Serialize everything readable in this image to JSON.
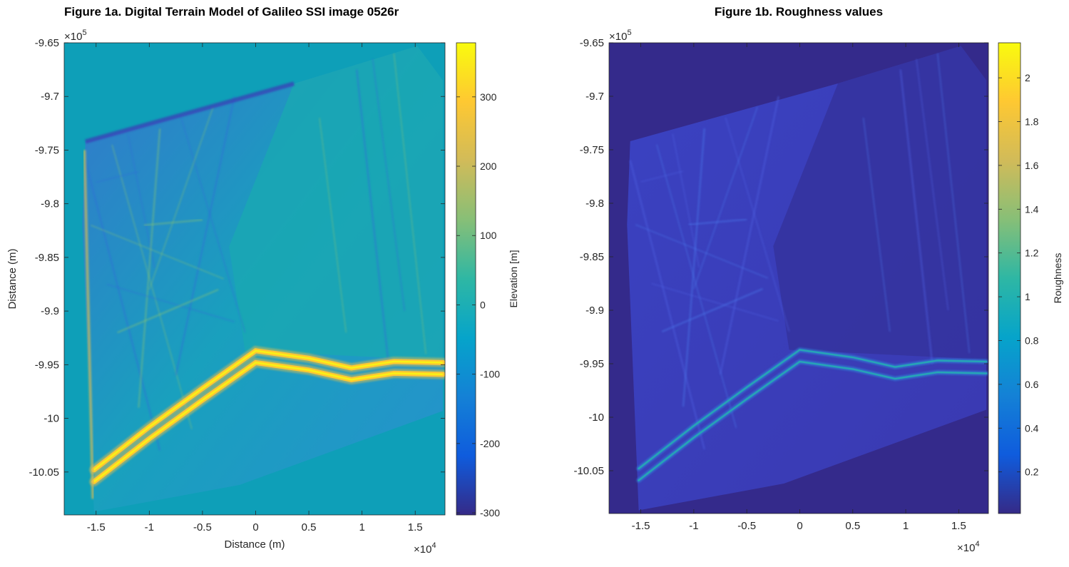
{
  "chart_data": [
    {
      "type": "heatmap",
      "title": "Figure 1a. Digital Terrain Model of Galileo SSI image 0526r",
      "xlabel": "Distance (m)",
      "ylabel": "Distance (m)",
      "xlim": [
        -18000,
        17800
      ],
      "ylim": [
        -1009000,
        -965000
      ],
      "x_ticks": [
        -15000,
        -10000,
        -5000,
        0,
        5000,
        10000,
        15000
      ],
      "x_tick_labels": [
        "-1.5",
        "-1",
        "-0.5",
        "0",
        "0.5",
        "1",
        "1.5"
      ],
      "x_exponent_label": "×10",
      "x_exponent_power": "4",
      "y_ticks": [
        -965000,
        -970000,
        -975000,
        -980000,
        -985000,
        -990000,
        -995000,
        -1000000,
        -1005000
      ],
      "y_tick_labels": [
        "-9.65",
        "-9.7",
        "-9.75",
        "-9.8",
        "-9.85",
        "-9.9",
        "-9.95",
        "-10",
        "-10.05"
      ],
      "y_exponent_label": "×10",
      "y_exponent_power": "5",
      "colorbar": {
        "label": "Elevation [m]",
        "range": [
          -303,
          378
        ],
        "ticks": [
          -300,
          -200,
          -100,
          0,
          100,
          200,
          300
        ],
        "tick_labels": [
          "-300",
          "-200",
          "-100",
          "0",
          "100",
          "200",
          "300"
        ],
        "colormap": "parula"
      }
    },
    {
      "type": "heatmap",
      "title": "Figure 1b. Roughness values",
      "xlabel": "",
      "ylabel": "",
      "xlim": [
        -18000,
        17800
      ],
      "ylim": [
        -1009000,
        -965000
      ],
      "x_ticks": [
        -15000,
        -10000,
        -5000,
        0,
        5000,
        10000,
        15000
      ],
      "x_tick_labels": [
        "-1.5",
        "-1",
        "-0.5",
        "0",
        "0.5",
        "1",
        "1.5"
      ],
      "x_exponent_label": "×10",
      "x_exponent_power": "4",
      "y_ticks": [
        -965000,
        -970000,
        -975000,
        -980000,
        -985000,
        -990000,
        -995000,
        -1000000,
        -1005000
      ],
      "y_tick_labels": [
        "-9.65",
        "-9.7",
        "-9.75",
        "-9.8",
        "-9.85",
        "-9.9",
        "-9.95",
        "-10",
        "-10.05"
      ],
      "y_exponent_label": "×10",
      "y_exponent_power": "5",
      "colorbar": {
        "label": "Roughness",
        "range": [
          0.01,
          2.16
        ],
        "ticks": [
          0.2,
          0.4,
          0.6,
          0.8,
          1,
          1.2,
          1.4,
          1.6,
          1.8,
          2
        ],
        "tick_labels": [
          "0.2",
          "0.4",
          "0.6",
          "0.8",
          "1",
          "1.2",
          "1.4",
          "1.6",
          "1.8",
          "2"
        ],
        "colormap": "parula"
      }
    }
  ],
  "colors": {
    "parula": [
      "#352a87",
      "#0f5cdd",
      "#1481d6",
      "#06a4ca",
      "#2eb7a4",
      "#87bf77",
      "#d1bb59",
      "#fec832",
      "#f9fb0e"
    ],
    "dtm_background": "#0e9fb8",
    "roughness_background": "#342a8b"
  }
}
